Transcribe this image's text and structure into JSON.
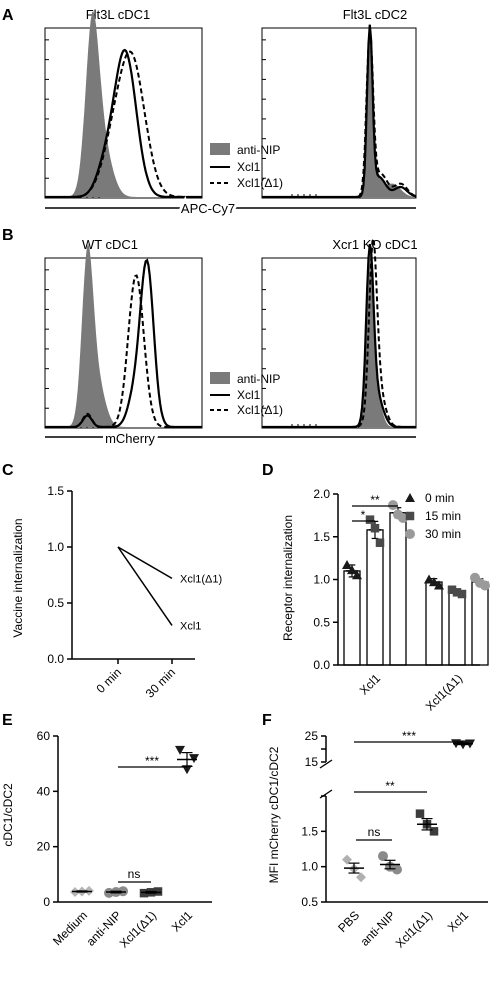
{
  "panels": {
    "A": {
      "letter": "A",
      "left_title": "Flt3L cDC1",
      "right_title": "Flt3L cDC2",
      "xlabel": "APC-Cy7",
      "legend": [
        "anti-NIP",
        "Xcl1",
        "Xcl1(Δ1)"
      ]
    },
    "B": {
      "letter": "B",
      "left_title": "WT cDC1",
      "right_title": "Xcr1 KO cDC1",
      "xlabel": "mCherry",
      "legend": [
        "anti-NIP",
        "Xcl1",
        "Xcl1(Δ1)"
      ]
    },
    "C": {
      "letter": "C"
    },
    "D": {
      "letter": "D"
    },
    "E": {
      "letter": "E"
    },
    "F": {
      "letter": "F"
    }
  },
  "colors": {
    "anti_nip_fill": "#7a7a7a",
    "c0": "#1a1a1a",
    "c15": "#4a4a4a",
    "c30": "#9a9a9a",
    "medium": "#b5b5b5",
    "antinip": "#8a8a8a",
    "delta": "#3c3c3c",
    "xcl1": "#1a1a1a",
    "pbs": "#b0b0b0"
  },
  "chart_data": [
    {
      "panel": "C",
      "type": "line",
      "ylabel": "Vaccine internalization",
      "categories": [
        "0 min",
        "30 min"
      ],
      "ylim": [
        0,
        1.5
      ],
      "yticks": [
        "0.0",
        "0.5",
        "1.0",
        "1.5"
      ],
      "series": [
        {
          "name": "Xcl1(Δ1)",
          "values": [
            1.0,
            0.72
          ]
        },
        {
          "name": "Xcl1",
          "values": [
            1.0,
            0.3
          ]
        }
      ]
    },
    {
      "panel": "D",
      "type": "bar",
      "ylabel": "Receptor internalization",
      "categories": [
        "Xcl1",
        "Xcl1(Δ1)"
      ],
      "ylim": [
        0,
        2.0
      ],
      "yticks": [
        "0.0",
        "0.5",
        "1.0",
        "1.5",
        "2.0"
      ],
      "legend": [
        "0 min",
        "15 min",
        "30 min"
      ],
      "series": [
        {
          "name": "0 min",
          "values": [
            1.1,
            0.97
          ],
          "sem": [
            0.07,
            0.04
          ],
          "points": [
            [
              1.17,
              1.11,
              1.05
            ],
            [
              1.0,
              0.97,
              0.93
            ]
          ]
        },
        {
          "name": "15 min",
          "values": [
            1.58,
            0.85
          ],
          "sem": [
            0.1,
            0.03
          ],
          "points": [
            [
              1.7,
              1.6,
              1.43
            ],
            [
              0.88,
              0.85,
              0.83
            ]
          ]
        },
        {
          "name": "30 min",
          "values": [
            1.78,
            0.97
          ],
          "sem": [
            0.06,
            0.04
          ],
          "points": [
            [
              1.87,
              1.76,
              1.72
            ],
            [
              1.02,
              0.96,
              0.93
            ]
          ]
        }
      ],
      "significance": [
        {
          "label": "*",
          "from": [
            0,
            0
          ],
          "to": [
            0,
            1
          ]
        },
        {
          "label": "**",
          "from": [
            0,
            0
          ],
          "to": [
            0,
            2
          ]
        }
      ]
    },
    {
      "panel": "E",
      "type": "scatter",
      "ylabel": "cDC1/cDC2",
      "categories": [
        "Medium",
        "anti-NIP",
        "Xcl1(Δ1)",
        "Xcl1"
      ],
      "ylim": [
        0,
        60
      ],
      "yticks": [
        "0",
        "20",
        "40",
        "60"
      ],
      "groups": [
        {
          "mean": 3.8,
          "sem": 0.2,
          "points": [
            3.6,
            3.8,
            4.0
          ]
        },
        {
          "mean": 3.6,
          "sem": 0.3,
          "points": [
            3.3,
            3.6,
            3.9
          ]
        },
        {
          "mean": 3.5,
          "sem": 0.3,
          "points": [
            3.2,
            3.5,
            3.8
          ]
        },
        {
          "mean": 51.5,
          "sem": 2.5,
          "points": [
            55,
            48,
            52
          ]
        }
      ],
      "significance": [
        {
          "label": "***",
          "from": 1,
          "to": 3
        },
        {
          "label": "ns",
          "from": 1,
          "to": 2
        }
      ]
    },
    {
      "panel": "F",
      "type": "scatter",
      "ylabel": "MFI mCherry cDC1/cDC2",
      "categories": [
        "PBS",
        "anti-NIP",
        "Xcl1(Δ1)",
        "Xcl1"
      ],
      "yticks_lower": [
        "0.5",
        "1.0",
        "1.5",
        "2.0"
      ],
      "yticks_upper": [
        "15",
        "20",
        "25"
      ],
      "groups": [
        {
          "mean": 0.98,
          "sem": 0.07,
          "points": [
            1.1,
            0.97,
            0.85
          ]
        },
        {
          "mean": 1.03,
          "sem": 0.06,
          "points": [
            1.15,
            1.0,
            0.96
          ]
        },
        {
          "mean": 1.6,
          "sem": 0.08,
          "points": [
            1.75,
            1.6,
            1.5
          ]
        },
        {
          "mean": 22,
          "sem": 0.3,
          "points": [
            22.2,
            21.8,
            22.1
          ]
        }
      ],
      "significance": [
        {
          "label": "***",
          "from": 0,
          "to": 3
        },
        {
          "label": "**",
          "from": 0,
          "to": 2
        },
        {
          "label": "ns",
          "from": 0,
          "to": 1
        }
      ]
    }
  ]
}
